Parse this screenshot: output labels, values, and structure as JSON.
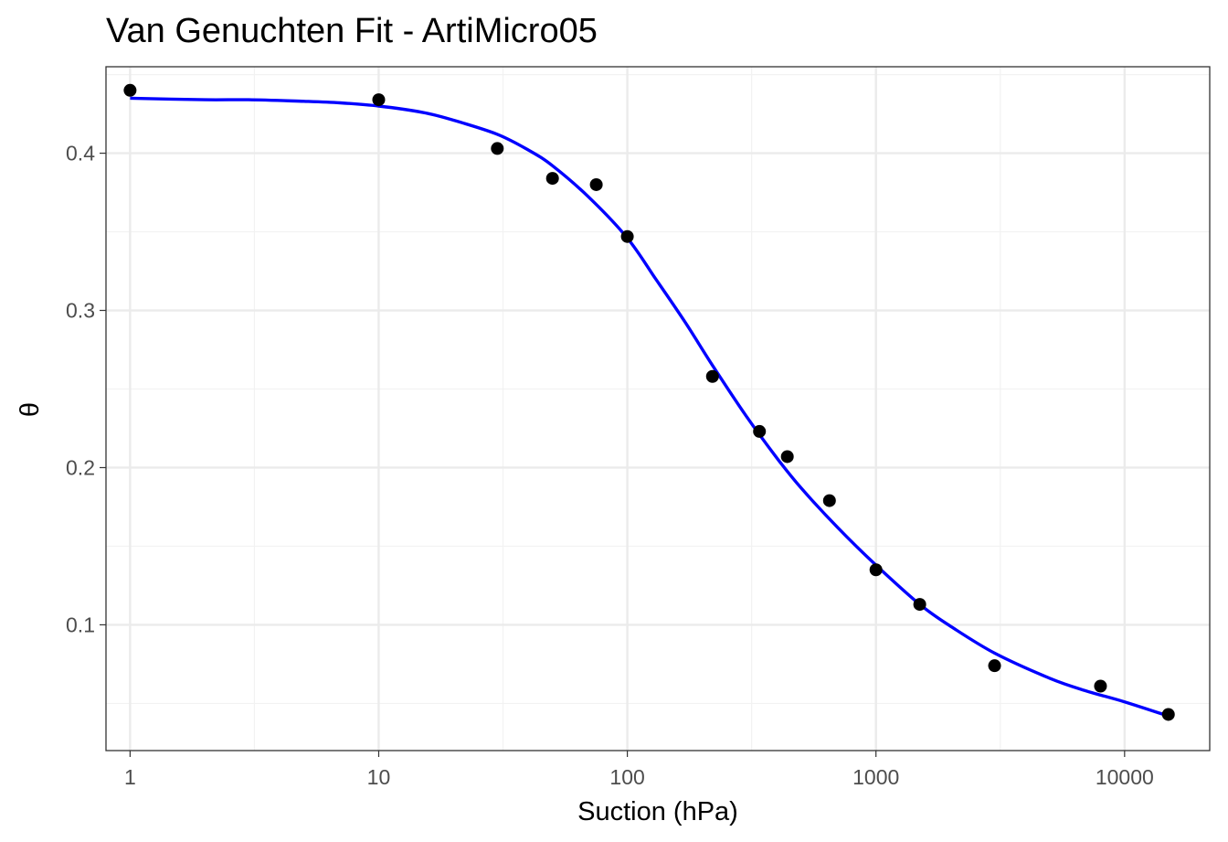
{
  "chart_data": {
    "type": "scatter",
    "title": "Van Genuchten Fit - ArtiMicro05",
    "xlabel": "Suction (hPa)",
    "ylabel": "θ",
    "xscale": "log10",
    "xlim": [
      0.8,
      22000
    ],
    "ylim": [
      0.02,
      0.455
    ],
    "x_ticks": [
      1,
      10,
      100,
      1000,
      10000
    ],
    "x_tick_labels": [
      "1",
      "10",
      "100",
      "1000",
      "10000"
    ],
    "y_ticks": [
      0.1,
      0.2,
      0.3,
      0.4
    ],
    "y_tick_labels": [
      "0.1",
      "0.2",
      "0.3",
      "0.4"
    ],
    "grid": true,
    "series": [
      {
        "kind": "points",
        "color": "#000000",
        "x": [
          1,
          10,
          30,
          50,
          75,
          100,
          220,
          340,
          440,
          650,
          1000,
          1500,
          3000,
          8000,
          15000
        ],
        "y": [
          0.44,
          0.434,
          0.403,
          0.384,
          0.38,
          0.347,
          0.258,
          0.223,
          0.207,
          0.179,
          0.135,
          0.113,
          0.074,
          0.061,
          0.043
        ]
      },
      {
        "kind": "fitted-curve",
        "color": "#0000ff",
        "x": [
          1,
          2,
          3,
          5,
          7,
          10,
          15,
          20,
          30,
          40,
          50,
          70,
          100,
          130,
          170,
          220,
          300,
          400,
          500,
          700,
          1000,
          1500,
          2000,
          3000,
          5000,
          7000,
          10000,
          15000
        ],
        "y": [
          0.435,
          0.434,
          0.434,
          0.433,
          0.432,
          0.43,
          0.426,
          0.421,
          0.412,
          0.402,
          0.392,
          0.372,
          0.346,
          0.32,
          0.293,
          0.265,
          0.233,
          0.206,
          0.187,
          0.162,
          0.138,
          0.113,
          0.099,
          0.082,
          0.066,
          0.058,
          0.051,
          0.042
        ]
      }
    ]
  }
}
